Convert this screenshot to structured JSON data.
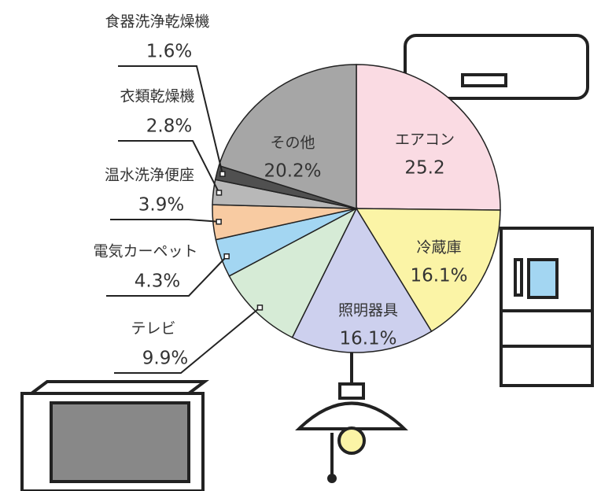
{
  "chart_data": {
    "type": "pie",
    "categories": [
      "エアコン",
      "冷蔵庫",
      "照明器具",
      "テレビ",
      "電気カーペット",
      "温水洗浄便座",
      "衣類乾燥機",
      "食器洗浄乾燥機",
      "その他"
    ],
    "values": [
      25.2,
      16.1,
      16.1,
      9.9,
      4.3,
      3.9,
      2.8,
      1.6,
      20.2
    ],
    "value_labels": [
      "25.2",
      "16.1%",
      "16.1%",
      "9.9%",
      "4.3%",
      "3.9%",
      "2.8%",
      "1.6%",
      "20.2%"
    ],
    "colors": [
      "#fadbe3",
      "#fbf4a6",
      "#cdd0ee",
      "#d6ebd6",
      "#a3d6f2",
      "#f8cba2",
      "#b8b8b8",
      "#505050",
      "#a6a6a6"
    ]
  }
}
